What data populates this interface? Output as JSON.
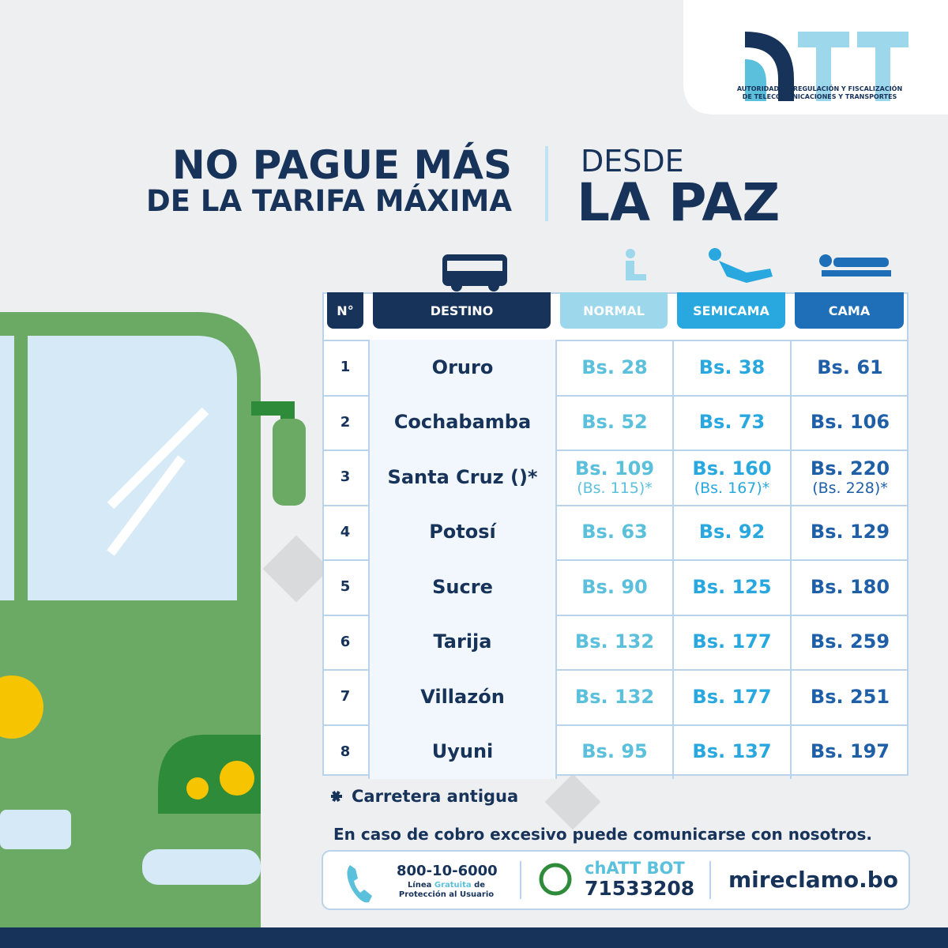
{
  "logo": {
    "mark": "TT",
    "lines": [
      "AUTORIDAD DE REGULACIÓN Y FISCALIZACIÓN",
      "DE TELECOMUNICACIONES Y TRANSPORTES"
    ]
  },
  "headline": {
    "left": [
      "NO PAGUE MÁS",
      "DE LA TARIFA MÁXIMA"
    ],
    "right_small": "DESDE",
    "right_big": "LA PAZ"
  },
  "table": {
    "headers": [
      "N°",
      "DESTINO",
      "NORMAL",
      "SEMICAMA",
      "CAMA"
    ],
    "rows": [
      {
        "n": "1",
        "destino": "Oruro",
        "normal": "Bs. 28",
        "semicama": "Bs. 38",
        "cama": "Bs. 61"
      },
      {
        "n": "2",
        "destino": "Cochabamba",
        "normal": "Bs. 52",
        "semicama": "Bs. 73",
        "cama": "Bs. 106"
      },
      {
        "n": "3",
        "destino": "Santa Cruz ()*",
        "normal": "Bs. 109",
        "normal_alt": "(Bs. 115)*",
        "semicama": "Bs. 160",
        "semicama_alt": "(Bs. 167)*",
        "cama": "Bs. 220",
        "cama_alt": "(Bs. 228)*"
      },
      {
        "n": "4",
        "destino": "Potosí",
        "normal": "Bs. 63",
        "semicama": "Bs. 92",
        "cama": "Bs. 129"
      },
      {
        "n": "5",
        "destino": "Sucre",
        "normal": "Bs. 90",
        "semicama": "Bs. 125",
        "cama": "Bs. 180"
      },
      {
        "n": "6",
        "destino": "Tarija",
        "normal": "Bs. 132",
        "semicama": "Bs. 177",
        "cama": "Bs. 259"
      },
      {
        "n": "7",
        "destino": "Villazón",
        "normal": "Bs. 132",
        "semicama": "Bs. 177",
        "cama": "Bs. 251"
      },
      {
        "n": "8",
        "destino": "Uyuni",
        "normal": "Bs. 95",
        "semicama": "Bs. 137",
        "cama": "Bs. 197"
      }
    ]
  },
  "footnote": "Carretera antigua",
  "contact_intro": "En caso de cobro excesivo puede comunicarse con nosotros.",
  "contact": {
    "phone": "800-10-6000",
    "phone_note": [
      "Línea",
      "Gratuita",
      "de",
      "Protección al Usuario"
    ],
    "chatbot": "chATT BOT",
    "chatbot_number": "71533208",
    "web": "mireclamo.bo"
  }
}
